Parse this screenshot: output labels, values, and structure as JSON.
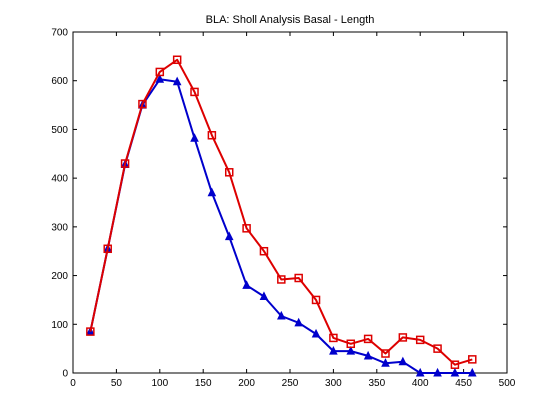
{
  "chart_data": {
    "type": "line",
    "title": "BLA: Sholl Analysis Basal - Length",
    "xlabel": "",
    "ylabel": "",
    "xlim": [
      0,
      500
    ],
    "ylim": [
      0,
      700
    ],
    "xticks": [
      0,
      50,
      100,
      150,
      200,
      250,
      300,
      350,
      400,
      450,
      500
    ],
    "yticks": [
      0,
      100,
      200,
      300,
      400,
      500,
      600,
      700
    ],
    "grid": false,
    "legend": "none",
    "series": [
      {
        "color": "#0000cc",
        "marker": "triangle",
        "x": [
          20,
          40,
          60,
          80,
          100,
          120,
          140,
          160,
          180,
          200,
          220,
          240,
          260,
          280,
          300,
          320,
          340,
          360,
          380,
          400,
          420,
          440,
          460
        ],
        "y": [
          85,
          255,
          428,
          550,
          603,
          598,
          482,
          370,
          280,
          180,
          157,
          117,
          103,
          80,
          45,
          45,
          35,
          20,
          23,
          0,
          0,
          0,
          0
        ]
      },
      {
        "color": "#dd0000",
        "marker": "square",
        "x": [
          20,
          40,
          60,
          80,
          100,
          120,
          140,
          160,
          180,
          200,
          220,
          240,
          260,
          280,
          300,
          320,
          340,
          360,
          380,
          400,
          420,
          440,
          460
        ],
        "y": [
          85,
          255,
          430,
          552,
          618,
          643,
          577,
          488,
          412,
          297,
          250,
          192,
          195,
          150,
          72,
          60,
          70,
          40,
          73,
          68,
          50,
          17,
          28
        ]
      }
    ]
  }
}
